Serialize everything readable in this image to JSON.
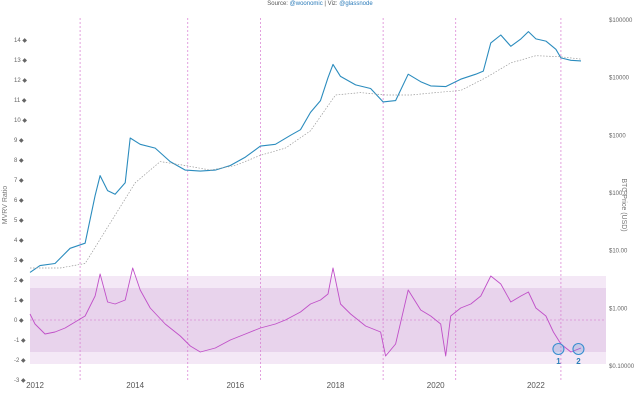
{
  "source": {
    "prefix": "Source: ",
    "source_handle": "@woonomic",
    "sep": " | ",
    "viz_prefix": "Viz: ",
    "viz_handle": "@glassnode"
  },
  "colors": {
    "price_line": "#2b8cbe",
    "realized_line": "#9a9a9a",
    "mvrv_line": "#c050c8",
    "band_outer": "#f4e8f6",
    "band_inner": "#e8d3ec",
    "halving_line": "#d878d0",
    "zero_line": "#d070c8",
    "marker": "#3a8fd0"
  },
  "chart_data": {
    "type": "line",
    "title": "",
    "x_ticks": [
      "2012",
      "2014",
      "2016",
      "2018",
      "2020",
      "2022"
    ],
    "xlim": [
      2011.9,
      2023.4
    ],
    "left_axis": {
      "label": "MVRV Ratio",
      "ticks": [
        "-3 ◆",
        "-2 ◆",
        "-1 ◆",
        "0 ◆",
        "1 ◆",
        "2 ◆",
        "3 ◆",
        "4 ◆",
        "5 ◆",
        "6 ◆",
        "7 ◆",
        "8 ◆",
        "9 ◆",
        "10 ◆",
        "11 ◆",
        "12 ◆",
        "13 ◆",
        "14 ◆"
      ]
    },
    "right_axis": {
      "label": "BTC Price (USD)",
      "scale": "log",
      "ticks": [
        "$0.10000",
        "$1.000",
        "$10.00",
        "$100.0",
        "$1000",
        "$10000",
        "$100000"
      ]
    },
    "halvings": [
      2012.9,
      2016.5,
      2020.4
    ],
    "extra_vlines": [
      2015.05,
      2018.95,
      2022.5
    ],
    "bands": {
      "outer": [
        -2.2,
        2.2
      ],
      "inner": [
        -1.6,
        1.6
      ],
      "zero": 0
    },
    "markers": [
      {
        "label": "1",
        "x": 2022.45,
        "y": -1.45
      },
      {
        "label": "2",
        "x": 2022.85,
        "y": -1.45
      }
    ],
    "series": [
      {
        "axis": "right",
        "x": [
          2011.9,
          2012.1,
          2012.4,
          2012.7,
          2013.0,
          2013.2,
          2013.3,
          2013.45,
          2013.6,
          2013.8,
          2013.9,
          2014.1,
          2014.4,
          2014.7,
          2015.0,
          2015.3,
          2015.6,
          2015.9,
          2016.2,
          2016.5,
          2016.8,
          2017.1,
          2017.3,
          2017.5,
          2017.7,
          2017.85,
          2017.95,
          2018.1,
          2018.4,
          2018.7,
          2018.95,
          2019.2,
          2019.45,
          2019.7,
          2019.9,
          2020.2,
          2020.5,
          2020.8,
          2020.95,
          2021.1,
          2021.3,
          2021.5,
          2021.7,
          2021.85,
          2022.0,
          2022.2,
          2022.4,
          2022.5,
          2022.7,
          2022.9
        ],
        "y": [
          4.2,
          5.5,
          6.0,
          11.0,
          13.5,
          90,
          200,
          110,
          95,
          150,
          900,
          700,
          600,
          350,
          250,
          240,
          250,
          300,
          420,
          650,
          700,
          1000,
          1250,
          2500,
          4000,
          10000,
          17000,
          10500,
          7500,
          6500,
          3800,
          4000,
          11500,
          8500,
          7200,
          7000,
          9400,
          11500,
          13000,
          40000,
          55000,
          35000,
          47000,
          63000,
          47000,
          43000,
          31000,
          22000,
          20000,
          19500
        ]
      },
      {
        "axis": "right",
        "x": [
          2011.9,
          2012.5,
          2013.0,
          2013.5,
          2014.0,
          2014.5,
          2015.0,
          2015.5,
          2016.0,
          2016.5,
          2017.0,
          2017.5,
          2018.0,
          2018.5,
          2019.0,
          2019.5,
          2020.0,
          2020.5,
          2021.0,
          2021.5,
          2022.0,
          2022.5,
          2022.9
        ],
        "y": [
          5,
          5,
          6,
          30,
          150,
          350,
          300,
          250,
          300,
          450,
          600,
          1200,
          5000,
          5500,
          5000,
          5000,
          5500,
          6000,
          10000,
          18000,
          24000,
          23000,
          21000
        ]
      },
      {
        "axis": "left",
        "name": "",
        "x": [
          2011.9,
          2012.0,
          2012.2,
          2012.4,
          2012.6,
          2012.8,
          2013.0,
          2013.2,
          2013.3,
          2013.45,
          2013.6,
          2013.8,
          2013.95,
          2014.1,
          2014.3,
          2014.6,
          2014.9,
          2015.1,
          2015.3,
          2015.6,
          2015.9,
          2016.2,
          2016.5,
          2016.8,
          2017.0,
          2017.3,
          2017.5,
          2017.7,
          2017.85,
          2017.95,
          2018.1,
          2018.3,
          2018.6,
          2018.9,
          2019.0,
          2019.2,
          2019.45,
          2019.7,
          2019.9,
          2020.1,
          2020.2,
          2020.3,
          2020.5,
          2020.7,
          2020.9,
          2021.1,
          2021.3,
          2021.5,
          2021.7,
          2021.85,
          2022.0,
          2022.2,
          2022.35,
          2022.5,
          2022.7,
          2022.9
        ],
        "y": [
          0.3,
          -0.2,
          -0.7,
          -0.6,
          -0.4,
          -0.1,
          0.2,
          1.2,
          2.3,
          0.9,
          0.8,
          1.0,
          2.6,
          1.5,
          0.6,
          -0.2,
          -0.8,
          -1.3,
          -1.6,
          -1.4,
          -1.0,
          -0.7,
          -0.4,
          -0.2,
          0.0,
          0.4,
          0.8,
          1.0,
          1.3,
          2.6,
          0.8,
          0.3,
          -0.3,
          -0.6,
          -1.8,
          -1.2,
          1.5,
          0.5,
          0.2,
          -0.2,
          -1.8,
          0.2,
          0.6,
          0.8,
          1.2,
          2.2,
          1.8,
          0.9,
          1.2,
          1.4,
          0.6,
          0.2,
          -0.6,
          -1.2,
          -1.6,
          -1.4
        ]
      }
    ]
  }
}
